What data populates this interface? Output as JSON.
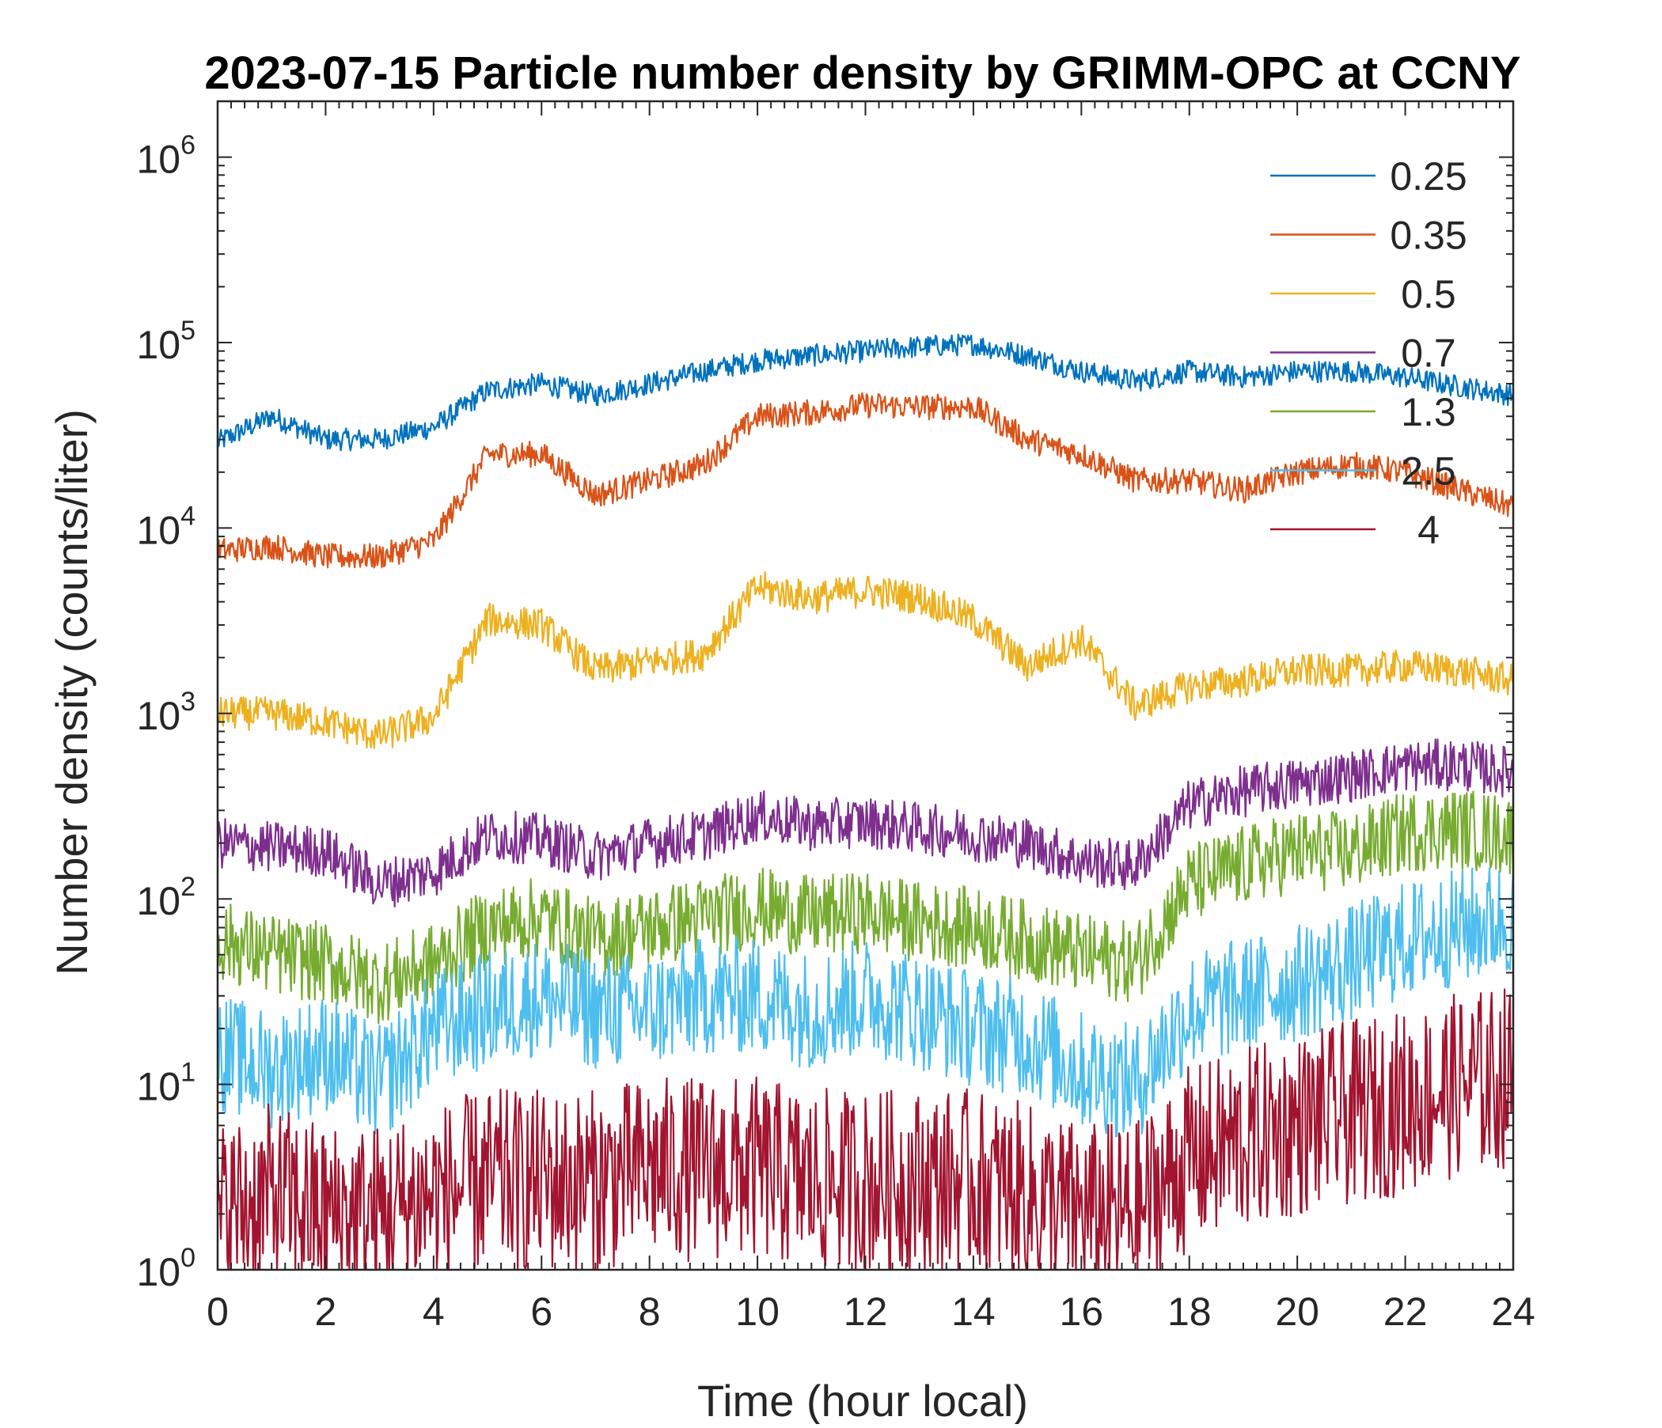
{
  "chart_data": {
    "type": "line",
    "title": "2023-07-15 Particle number density by GRIMM-OPC at CCNY",
    "xlabel": "Time (hour local)",
    "ylabel": "Number density (counts/liter)",
    "xlim": [
      0,
      24
    ],
    "ylim": [
      1,
      2000000
    ],
    "yscale": "log",
    "grid": false,
    "legend_position": "top-right",
    "x_ticks": [
      0,
      2,
      4,
      6,
      8,
      10,
      12,
      14,
      16,
      18,
      20,
      22,
      24
    ],
    "x_tick_labels": [
      "0",
      "2",
      "4",
      "6",
      "8",
      "10",
      "12",
      "14",
      "16",
      "18",
      "20",
      "22",
      "24"
    ],
    "y_tick_labels": [
      {
        "base": "10",
        "exp": "0",
        "value": 1
      },
      {
        "base": "10",
        "exp": "1",
        "value": 10
      },
      {
        "base": "10",
        "exp": "2",
        "value": 100
      },
      {
        "base": "10",
        "exp": "3",
        "value": 1000
      },
      {
        "base": "10",
        "exp": "4",
        "value": 10000
      },
      {
        "base": "10",
        "exp": "5",
        "value": 100000
      },
      {
        "base": "10",
        "exp": "6",
        "value": 1000000
      }
    ],
    "x": [
      0,
      1,
      2,
      3,
      4,
      5,
      6,
      7,
      8,
      9,
      10,
      11,
      12,
      13,
      14,
      15,
      16,
      17,
      18,
      19,
      20,
      21,
      22,
      23,
      24
    ],
    "series": [
      {
        "name": "0.25",
        "color": "#0072BD",
        "values": [
          29000,
          40000,
          30000,
          30000,
          35000,
          55000,
          60000,
          52000,
          60000,
          70000,
          80000,
          85000,
          90000,
          95000,
          98000,
          85000,
          70000,
          62000,
          70000,
          65000,
          70000,
          70000,
          65000,
          58000,
          52000
        ]
      },
      {
        "name": "0.35",
        "color": "#D95319",
        "values": [
          7500,
          8000,
          7000,
          7000,
          8500,
          25000,
          25000,
          15000,
          18000,
          22000,
          40000,
          42000,
          46000,
          45000,
          45000,
          30000,
          25000,
          18000,
          18000,
          16000,
          20000,
          22000,
          20000,
          16000,
          13000
        ]
      },
      {
        "name": "0.5",
        "color": "#EDB120",
        "values": [
          1000,
          1000,
          900,
          750,
          950,
          3200,
          3000,
          1700,
          1900,
          2100,
          4800,
          4200,
          4600,
          4200,
          3200,
          1800,
          2500,
          1100,
          1400,
          1500,
          1700,
          1700,
          1800,
          1700,
          1500
        ]
      },
      {
        "name": "0.7",
        "color": "#7E2F8E",
        "values": [
          200,
          190,
          180,
          120,
          140,
          220,
          210,
          170,
          200,
          220,
          280,
          250,
          260,
          240,
          220,
          200,
          160,
          150,
          320,
          380,
          420,
          460,
          520,
          530,
          480
        ]
      },
      {
        "name": "1.3",
        "color": "#77AC30",
        "values": [
          60,
          50,
          45,
          35,
          45,
          70,
          80,
          60,
          70,
          80,
          90,
          80,
          85,
          75,
          70,
          60,
          50,
          45,
          120,
          150,
          180,
          180,
          230,
          240,
          220
        ]
      },
      {
        "name": "2.5",
        "color": "#4DBEEE",
        "values": [
          15,
          12,
          15,
          10,
          20,
          25,
          30,
          25,
          25,
          30,
          30,
          25,
          30,
          25,
          20,
          18,
          12,
          10,
          25,
          30,
          35,
          45,
          60,
          70,
          80
        ]
      },
      {
        "name": "4",
        "color": "#A2142F",
        "values": [
          2,
          2.5,
          2,
          2,
          2.5,
          3,
          3,
          3,
          3.5,
          3.5,
          3.5,
          3,
          3,
          3,
          3,
          2.5,
          2,
          2,
          4,
          5,
          6,
          7,
          8,
          10,
          11
        ]
      }
    ]
  }
}
